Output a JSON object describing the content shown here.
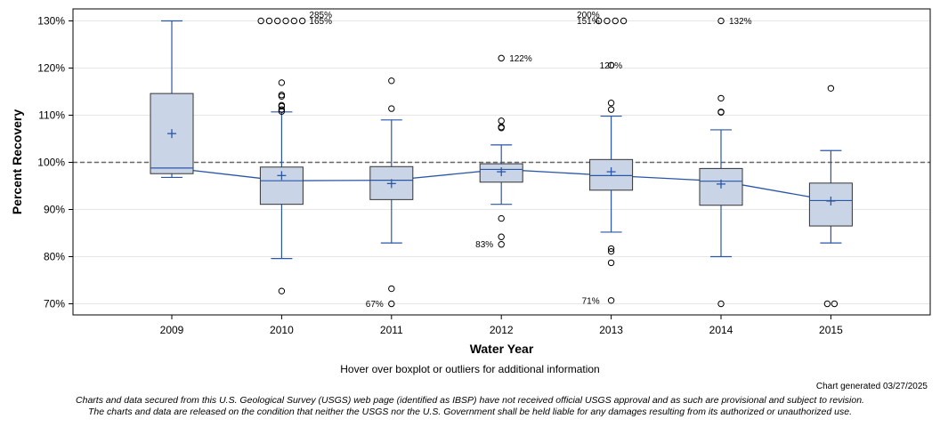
{
  "chart_data": {
    "type": "boxplot",
    "title": "",
    "xlabel": "Water Year",
    "ylabel": "Percent Recovery",
    "ylim": [
      68,
      132
    ],
    "yticks": [
      70,
      80,
      90,
      100,
      110,
      120,
      130
    ],
    "ytick_labels": [
      "70%",
      "80%",
      "90%",
      "100%",
      "110%",
      "120%",
      "130%"
    ],
    "reference_line": 100,
    "categories": [
      "2009",
      "2010",
      "2011",
      "2012",
      "2013",
      "2014",
      "2015"
    ],
    "boxes": [
      {
        "year": "2009",
        "whisker_low": 96.8,
        "q1": 97.6,
        "median": 98.8,
        "q3": 114.6,
        "whisker_high": 130,
        "mean": 106.1,
        "outliers": []
      },
      {
        "year": "2010",
        "whisker_low": 79.6,
        "q1": 91.1,
        "median": 96.1,
        "q3": 99.0,
        "whisker_high": 110.7,
        "mean": 97.2,
        "outliers": [
          72.7,
          110.8,
          111.2,
          111.9,
          112.1,
          114.0,
          114.3,
          116.9,
          130,
          130,
          130,
          130,
          130,
          130
        ]
      },
      {
        "year": "2011",
        "whisker_low": 82.9,
        "q1": 92.1,
        "median": 96.2,
        "q3": 99.1,
        "whisker_high": 109.0,
        "mean": 95.5,
        "outliers": [
          70.0,
          73.2,
          111.4,
          117.3
        ]
      },
      {
        "year": "2012",
        "whisker_low": 91.1,
        "q1": 95.8,
        "median": 98.5,
        "q3": 99.7,
        "whisker_high": 103.7,
        "mean": 98.0,
        "outliers": [
          82.6,
          84.2,
          88.1,
          107.3,
          107.5,
          108.8,
          122.1
        ]
      },
      {
        "year": "2013",
        "whisker_low": 85.2,
        "q1": 94.1,
        "median": 97.2,
        "q3": 100.6,
        "whisker_high": 109.8,
        "mean": 98.0,
        "outliers": [
          70.7,
          78.7,
          81.1,
          81.7,
          111.2,
          112.6,
          120.6,
          130,
          130,
          130,
          130
        ]
      },
      {
        "year": "2014",
        "whisker_low": 80.0,
        "q1": 90.9,
        "median": 96.0,
        "q3": 98.7,
        "whisker_high": 106.9,
        "mean": 95.4,
        "outliers": [
          70.0,
          110.6,
          110.7,
          113.6,
          130
        ]
      },
      {
        "year": "2015",
        "whisker_low": 82.9,
        "q1": 86.5,
        "median": 91.9,
        "q3": 95.6,
        "whisker_high": 102.5,
        "mean": 91.8,
        "outliers": [
          70.0,
          70.0,
          115.7
        ]
      }
    ],
    "annotations": [
      {
        "year": "2010",
        "text": "165%",
        "y": 130,
        "pos": "right"
      },
      {
        "year": "2010",
        "text": "285%",
        "y": 131.3,
        "pos": "right"
      },
      {
        "year": "2011",
        "text": "67%",
        "y": 70.0,
        "pos": "left"
      },
      {
        "year": "2012",
        "text": "122%",
        "y": 122.1,
        "pos": "right"
      },
      {
        "year": "2012",
        "text": "83%",
        "y": 82.6,
        "pos": "left"
      },
      {
        "year": "2013",
        "text": "151%",
        "y": 130,
        "pos": "left"
      },
      {
        "year": "2013",
        "text": "200%",
        "y": 131.3,
        "pos": "left"
      },
      {
        "year": "2013",
        "text": "120%",
        "y": 120.6,
        "pos": "farright"
      },
      {
        "year": "2013",
        "text": "71%",
        "y": 70.7,
        "pos": "left"
      },
      {
        "year": "2014",
        "text": "132%",
        "y": 130,
        "pos": "right"
      }
    ],
    "legend": "none",
    "grid": true
  },
  "footer": {
    "hover_note": "Hover over boxplot or outliers for additional information",
    "generated": "Chart generated 03/27/2025",
    "disclaimer_1": "Charts and data secured from this U.S. Geological Survey (USGS) web page (identified as IBSP) have not received official USGS approval and as such are provisional and subject to revision.",
    "disclaimer_2": "The charts and data are released on the condition that neither the USGS nor the U.S. Government shall be held liable for any damages resulting from its authorized or unauthorized use."
  },
  "colors": {
    "box_fill": "#c9d5e6",
    "box_stroke": "#333333",
    "whisker": "#2a56a8",
    "mean_line": "#2a56a8",
    "grid": "#e6e6e6",
    "reference": "#666666"
  }
}
